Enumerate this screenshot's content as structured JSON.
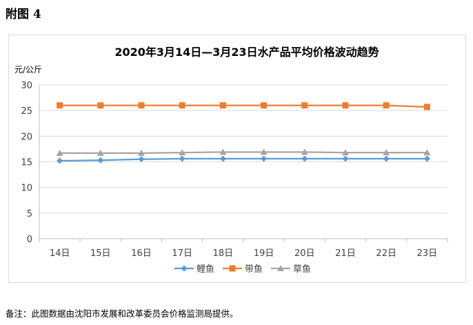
{
  "figure_label": "附图 4",
  "footnote": "备注：此图数据由沈阳市发展和改革委员会价格监测局提供。",
  "chart_data": {
    "type": "line",
    "title": "2020年3月14日—3月23日水产品平均价格波动趋势",
    "ylabel": "元/公斤",
    "xlabel": "",
    "categories": [
      "14日",
      "15日",
      "16日",
      "17日",
      "18日",
      "19日",
      "20日",
      "21日",
      "22日",
      "23日"
    ],
    "ylim": [
      0,
      30
    ],
    "yticks": [
      0,
      5,
      10,
      15,
      20,
      25,
      30
    ],
    "grid": true,
    "legend_position": "bottom",
    "series": [
      {
        "name": "鲤鱼",
        "color": "#5b9bd5",
        "marker": "diamond",
        "values": [
          15.2,
          15.3,
          15.5,
          15.6,
          15.6,
          15.6,
          15.6,
          15.6,
          15.6,
          15.6
        ]
      },
      {
        "name": "带鱼",
        "color": "#ed7d31",
        "marker": "square",
        "values": [
          26.0,
          26.0,
          26.0,
          26.0,
          26.0,
          26.0,
          26.0,
          26.0,
          26.0,
          25.7
        ]
      },
      {
        "name": "草鱼",
        "color": "#a5a5a5",
        "marker": "triangle",
        "values": [
          16.7,
          16.7,
          16.7,
          16.8,
          16.9,
          16.9,
          16.9,
          16.8,
          16.8,
          16.8
        ]
      }
    ]
  }
}
